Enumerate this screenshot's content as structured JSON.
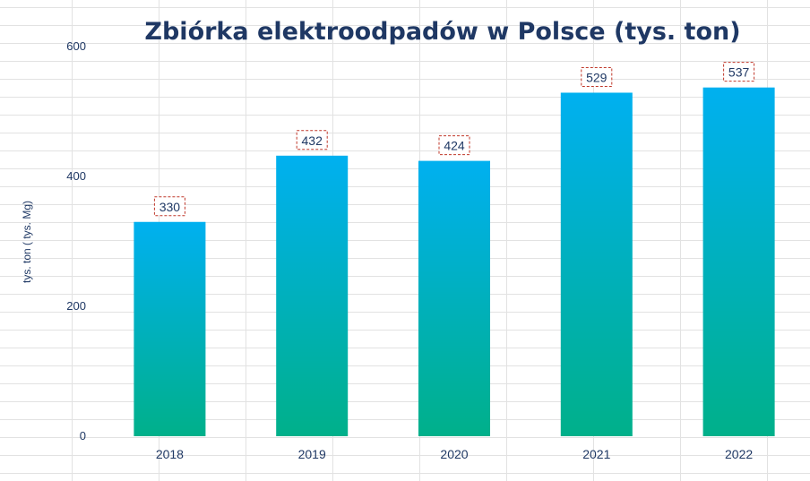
{
  "chart_data": {
    "type": "bar",
    "title": "Zbiórka elektroodpadów w Polsce (tys. ton)",
    "xlabel": "",
    "ylabel": "tys. ton ( tys. Mg)",
    "categories": [
      "2018",
      "2019",
      "2020",
      "2021",
      "2022"
    ],
    "values": [
      330,
      432,
      424,
      529,
      537
    ],
    "value_labels": [
      "330",
      "432",
      "424",
      "529",
      "537"
    ],
    "ylim": [
      0,
      600
    ],
    "yticks": [
      0,
      200,
      400,
      600
    ],
    "ytick_labels": [
      "0",
      "200",
      "400",
      "600"
    ],
    "grid": false,
    "legend": "none",
    "colors": {
      "bar_top": "#00b0f0",
      "bar_bottom": "#00b08a",
      "title": "#1f3864",
      "text": "#1f3864",
      "label_border": "#c0392b"
    }
  }
}
